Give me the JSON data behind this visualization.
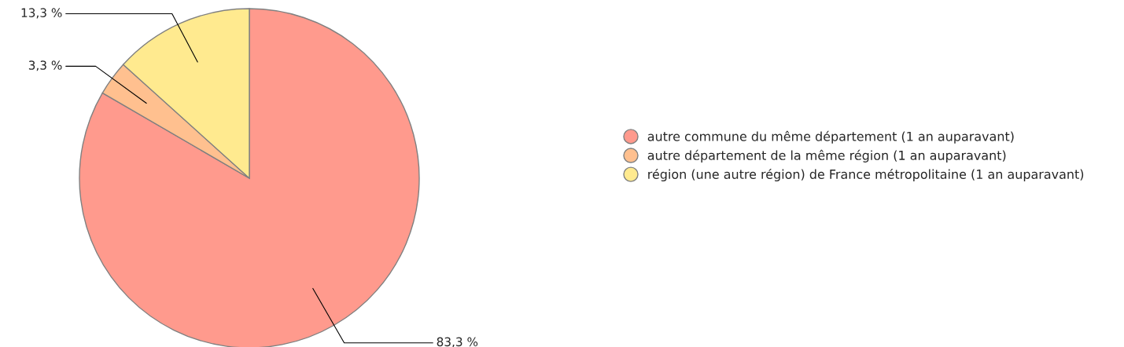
{
  "chart_data": {
    "type": "pie",
    "categories": [
      "autre commune du même département (1 an auparavant)",
      "autre département de la même région (1 an auparavant)",
      "région (une autre région) de France métropolitaine (1 an auparavant)"
    ],
    "values": [
      83.3,
      3.3,
      13.3
    ],
    "colors": [
      "#ff9a8d",
      "#ffc08f",
      "#ffea8f"
    ],
    "value_labels": [
      "83,3 %",
      "3,3 %",
      "13,3 %"
    ],
    "legend": "right"
  }
}
